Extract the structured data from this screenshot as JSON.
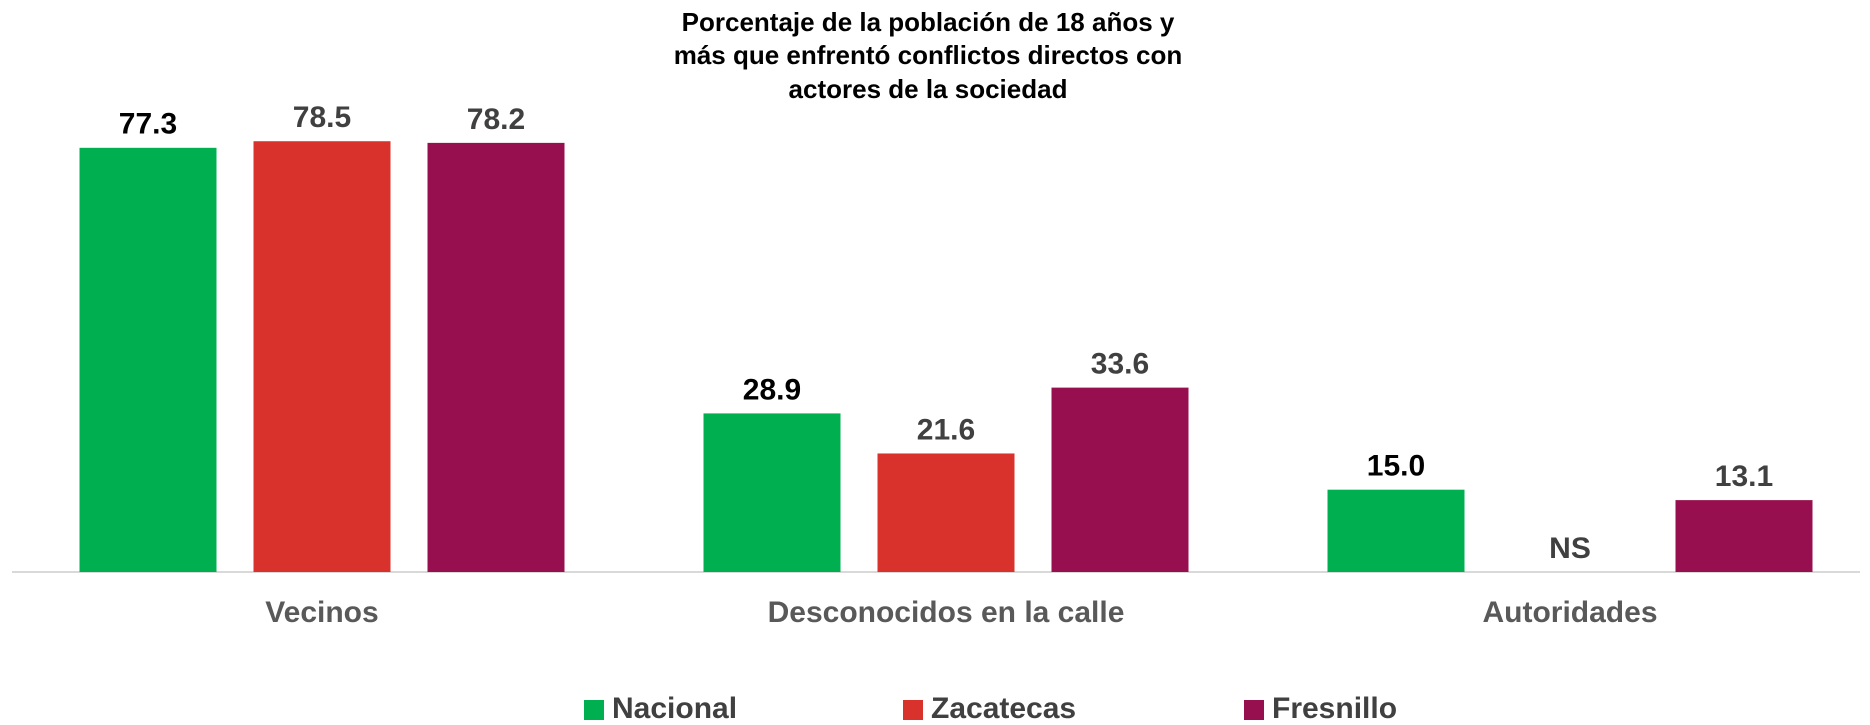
{
  "chart_data": {
    "type": "bar",
    "title": [
      "Porcentaje de la población de 18 años y",
      "más que enfrentó conflictos directos con",
      "actores de la sociedad"
    ],
    "categories": [
      "Vecinos",
      "Desconocidos en la calle",
      "Autoridades"
    ],
    "series": [
      {
        "name": "Nacional",
        "color": "#00b050",
        "values": [
          77.3,
          28.9,
          15.0
        ],
        "value_labels": [
          "77.3",
          "28.9",
          "15.0"
        ]
      },
      {
        "name": "Zacatecas",
        "color": "#d9312b",
        "values": [
          78.5,
          21.6,
          null
        ],
        "value_labels": [
          "78.5",
          "21.6",
          "NS"
        ]
      },
      {
        "name": "Fresnillo",
        "color": "#970f4f",
        "values": [
          78.2,
          33.6,
          13.1
        ],
        "value_labels": [
          "78.2",
          "33.6",
          "13.1"
        ]
      }
    ],
    "ylim": [
      0,
      80
    ],
    "legend": "bottom"
  }
}
